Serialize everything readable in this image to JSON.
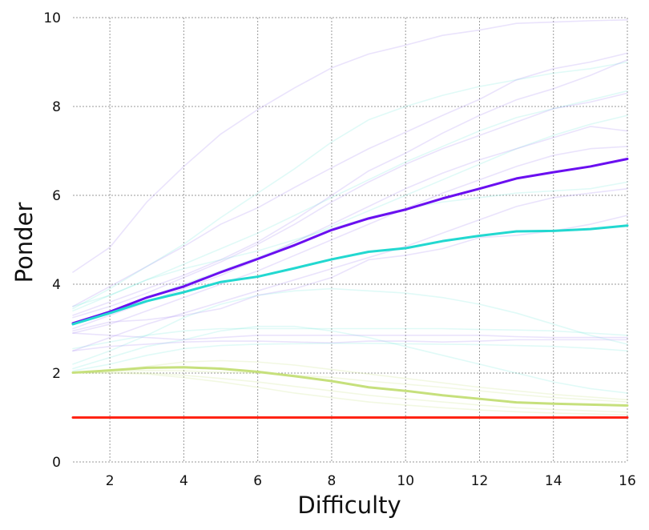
{
  "chart_data": {
    "type": "line",
    "title": "",
    "xlabel": "Difficulty",
    "ylabel": "Ponder",
    "xlim": [
      1,
      16
    ],
    "ylim": [
      0,
      10
    ],
    "x_ticks": [
      2,
      4,
      6,
      8,
      10,
      12,
      14,
      16
    ],
    "y_ticks": [
      0,
      2,
      4,
      6,
      8,
      10
    ],
    "grid": true,
    "legend": "none",
    "x": [
      1,
      2,
      3,
      4,
      5,
      6,
      7,
      8,
      9,
      10,
      11,
      12,
      13,
      14,
      15,
      16
    ],
    "series": [
      {
        "color": "#6a0ff0",
        "opacity": 1,
        "width": 3,
        "values": [
          3.12,
          3.38,
          3.7,
          3.95,
          4.27,
          4.57,
          4.88,
          5.22,
          5.48,
          5.68,
          5.93,
          6.15,
          6.38,
          6.52,
          6.65,
          6.82
        ]
      },
      {
        "color": "#22d8d0",
        "opacity": 1,
        "width": 3,
        "values": [
          3.1,
          3.35,
          3.62,
          3.82,
          4.05,
          4.17,
          4.36,
          4.56,
          4.73,
          4.81,
          4.97,
          5.09,
          5.19,
          5.2,
          5.24,
          5.32
        ]
      },
      {
        "color": "#c6e07c",
        "opacity": 1,
        "width": 3,
        "values": [
          2.01,
          2.06,
          2.12,
          2.13,
          2.1,
          2.03,
          1.93,
          1.82,
          1.68,
          1.6,
          1.5,
          1.42,
          1.34,
          1.31,
          1.29,
          1.27
        ]
      },
      {
        "color": "#ff2414",
        "opacity": 1,
        "width": 3,
        "values": [
          1.0,
          1.0,
          1.0,
          1.0,
          1.0,
          1.0,
          1.0,
          1.0,
          1.0,
          1.0,
          1.0,
          1.0,
          1.0,
          1.0,
          1.0,
          1.0
        ]
      },
      {
        "color": "#a080f0",
        "opacity": 0.22,
        "width": 1.6,
        "values": [
          4.27,
          4.83,
          5.85,
          6.65,
          7.38,
          7.93,
          8.42,
          8.87,
          9.18,
          9.38,
          9.6,
          9.72,
          9.87,
          9.9,
          9.93,
          9.95
        ]
      },
      {
        "color": "#a080f0",
        "opacity": 0.22,
        "width": 1.6,
        "values": [
          3.5,
          3.95,
          4.4,
          4.85,
          5.35,
          5.72,
          6.18,
          6.62,
          7.05,
          7.42,
          7.8,
          8.16,
          8.6,
          8.85,
          9.0,
          9.2
        ]
      },
      {
        "color": "#a080f0",
        "opacity": 0.22,
        "width": 1.6,
        "values": [
          3.3,
          3.6,
          3.9,
          4.2,
          4.55,
          4.95,
          5.45,
          6.0,
          6.55,
          6.95,
          7.4,
          7.8,
          8.15,
          8.4,
          8.7,
          9.05
        ]
      },
      {
        "color": "#a080f0",
        "opacity": 0.22,
        "width": 1.6,
        "values": [
          3.25,
          3.5,
          3.8,
          4.15,
          4.5,
          4.9,
          5.35,
          5.85,
          6.3,
          6.7,
          7.05,
          7.35,
          7.65,
          7.95,
          8.1,
          8.3
        ]
      },
      {
        "color": "#a080f0",
        "opacity": 0.22,
        "width": 1.6,
        "values": [
          3.0,
          3.3,
          3.6,
          3.9,
          4.2,
          4.55,
          4.95,
          5.35,
          5.75,
          6.15,
          6.5,
          6.8,
          7.05,
          7.3,
          7.55,
          7.45
        ]
      },
      {
        "color": "#a080f0",
        "opacity": 0.22,
        "width": 1.6,
        "values": [
          2.9,
          3.1,
          3.4,
          3.7,
          4.0,
          4.3,
          4.65,
          5.0,
          5.35,
          5.7,
          6.05,
          6.35,
          6.65,
          6.9,
          7.05,
          7.1
        ]
      },
      {
        "color": "#a080f0",
        "opacity": 0.22,
        "width": 1.6,
        "values": [
          2.5,
          2.8,
          3.1,
          3.35,
          3.6,
          3.85,
          4.1,
          4.35,
          4.6,
          4.85,
          5.15,
          5.45,
          5.75,
          5.95,
          6.05,
          6.15
        ]
      },
      {
        "color": "#a080f0",
        "opacity": 0.22,
        "width": 1.6,
        "values": [
          2.95,
          3.15,
          3.2,
          3.3,
          3.45,
          3.75,
          3.9,
          4.15,
          4.55,
          4.65,
          4.8,
          5.05,
          5.1,
          5.2,
          5.35,
          5.55
        ]
      },
      {
        "color": "#a080f0",
        "opacity": 0.22,
        "width": 1.6,
        "values": [
          2.5,
          2.6,
          2.65,
          2.7,
          2.72,
          2.72,
          2.7,
          2.68,
          2.72,
          2.72,
          2.7,
          2.72,
          2.75,
          2.75,
          2.75,
          2.75
        ]
      },
      {
        "color": "#a080f0",
        "opacity": 0.22,
        "width": 1.6,
        "values": [
          2.9,
          2.85,
          2.8,
          2.75,
          2.8,
          2.85,
          2.85,
          2.85,
          2.85,
          2.85,
          2.85,
          2.85,
          2.82,
          2.8,
          2.8,
          2.8
        ]
      },
      {
        "color": "#40e0d0",
        "opacity": 0.16,
        "width": 1.6,
        "values": [
          3.45,
          3.9,
          4.4,
          4.9,
          5.5,
          6.05,
          6.6,
          7.2,
          7.7,
          8.0,
          8.25,
          8.45,
          8.6,
          8.75,
          8.85,
          9.0
        ]
      },
      {
        "color": "#40e0d0",
        "opacity": 0.16,
        "width": 1.6,
        "values": [
          3.4,
          3.75,
          4.1,
          4.45,
          4.8,
          5.15,
          5.55,
          5.95,
          6.35,
          6.75,
          7.1,
          7.45,
          7.75,
          7.95,
          8.15,
          8.35
        ]
      },
      {
        "color": "#40e0d0",
        "opacity": 0.16,
        "width": 1.6,
        "values": [
          3.1,
          3.4,
          3.7,
          4.0,
          4.3,
          4.6,
          4.95,
          5.3,
          5.65,
          6.0,
          6.35,
          6.7,
          7.05,
          7.35,
          7.6,
          7.8
        ]
      },
      {
        "color": "#40e0d0",
        "opacity": 0.16,
        "width": 1.6,
        "values": [
          3.5,
          3.75,
          4.1,
          4.35,
          4.55,
          4.75,
          5.0,
          5.25,
          5.5,
          5.7,
          5.85,
          5.95,
          6.05,
          6.1,
          6.15,
          6.3
        ]
      },
      {
        "color": "#40e0d0",
        "opacity": 0.16,
        "width": 1.6,
        "values": [
          2.55,
          2.7,
          2.85,
          2.95,
          3.0,
          3.0,
          3.0,
          3.0,
          3.0,
          3.0,
          3.0,
          2.98,
          2.97,
          2.95,
          2.9,
          2.85
        ]
      },
      {
        "color": "#40e0d0",
        "opacity": 0.16,
        "width": 1.6,
        "values": [
          2.2,
          2.5,
          2.85,
          3.25,
          3.55,
          3.75,
          3.85,
          3.9,
          3.85,
          3.8,
          3.7,
          3.55,
          3.35,
          3.1,
          2.85,
          2.65
        ]
      },
      {
        "color": "#40e0d0",
        "opacity": 0.16,
        "width": 1.6,
        "values": [
          2.1,
          2.35,
          2.6,
          2.75,
          2.95,
          3.05,
          3.05,
          2.95,
          2.8,
          2.6,
          2.4,
          2.2,
          2.0,
          1.8,
          1.65,
          1.55
        ]
      },
      {
        "color": "#40e0d0",
        "opacity": 0.16,
        "width": 1.6,
        "values": [
          2.05,
          2.2,
          2.4,
          2.55,
          2.62,
          2.65,
          2.66,
          2.67,
          2.67,
          2.66,
          2.65,
          2.64,
          2.62,
          2.6,
          2.56,
          2.5
        ]
      },
      {
        "color": "#c6e07c",
        "opacity": 0.22,
        "width": 1.6,
        "values": [
          2.02,
          2.05,
          2.06,
          2.05,
          2.02,
          2.0,
          1.95,
          1.9,
          1.82,
          1.75,
          1.68,
          1.6,
          1.52,
          1.45,
          1.4,
          1.35
        ]
      },
      {
        "color": "#c6e07c",
        "opacity": 0.22,
        "width": 1.6,
        "values": [
          2.0,
          2.02,
          2.0,
          1.95,
          1.88,
          1.8,
          1.7,
          1.6,
          1.5,
          1.42,
          1.35,
          1.28,
          1.22,
          1.18,
          1.15,
          1.12
        ]
      },
      {
        "color": "#c6e07c",
        "opacity": 0.22,
        "width": 1.6,
        "values": [
          2.0,
          2.0,
          1.98,
          1.9,
          1.8,
          1.68,
          1.55,
          1.45,
          1.35,
          1.28,
          1.22,
          1.17,
          1.13,
          1.1,
          1.08,
          1.06
        ]
      },
      {
        "color": "#c6e07c",
        "opacity": 0.22,
        "width": 1.6,
        "values": [
          2.0,
          2.05,
          2.15,
          2.25,
          2.28,
          2.25,
          2.18,
          2.08,
          1.98,
          1.88,
          1.78,
          1.68,
          1.6,
          1.52,
          1.46,
          1.4
        ]
      }
    ]
  }
}
